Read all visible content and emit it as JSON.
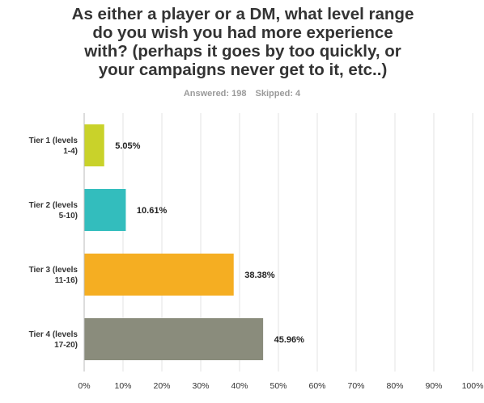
{
  "survey": {
    "title_lines": [
      "As either a player or a DM, what level range",
      "do you wish you had more experience",
      "with?  (perhaps it goes by too quickly, or",
      "your campaigns never get to it, etc..)"
    ],
    "answered": "Answered: 198",
    "skipped": "Skipped: 4"
  },
  "chart_data": {
    "type": "bar",
    "orientation": "horizontal",
    "title": "As either a player or a DM, what level range do you wish you had more experience with?  (perhaps it goes by too quickly, or your campaigns never get to it, etc..)",
    "categories": [
      [
        "Tier 1 (levels",
        "1-4)"
      ],
      [
        "Tier 2 (levels",
        "5-10)"
      ],
      [
        "Tier 3 (levels",
        "11-16)"
      ],
      [
        "Tier 4 (levels",
        "17-20)"
      ]
    ],
    "values": [
      5.05,
      10.61,
      38.38,
      45.96
    ],
    "value_labels": [
      "5.05%",
      "10.61%",
      "38.38%",
      "45.96%"
    ],
    "colors": [
      "#c9d22a",
      "#33bdbd",
      "#f5ae22",
      "#8a8c7c"
    ],
    "xlim": [
      0,
      100
    ],
    "ticks": [
      "0%",
      "10%",
      "20%",
      "30%",
      "40%",
      "50%",
      "60%",
      "70%",
      "80%",
      "90%",
      "100%"
    ],
    "grid": true
  }
}
